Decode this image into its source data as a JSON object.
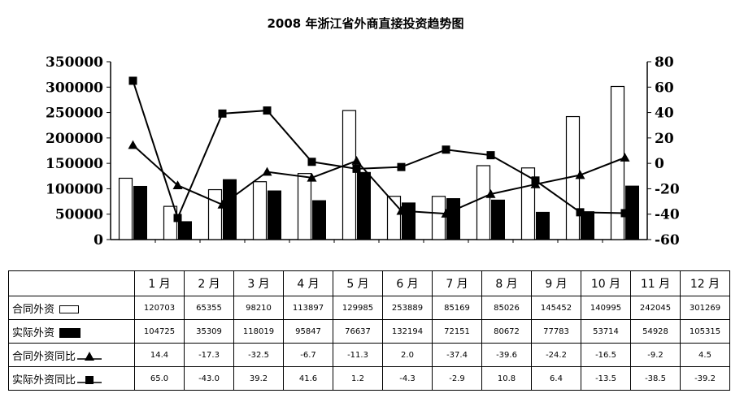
{
  "chart_data": {
    "type": "bar",
    "title": "2008 年浙江省外商直接投资趋势图",
    "categories": [
      "1 月",
      "2 月",
      "3 月",
      "4 月",
      "5 月",
      "6 月",
      "7 月",
      "8 月",
      "9 月",
      "10 月",
      "11 月",
      "12 月"
    ],
    "series": [
      {
        "name": "合同外资",
        "type": "bar",
        "style": "open",
        "axis": "left",
        "values": [
          120703,
          65355,
          98210,
          113897,
          129985,
          253889,
          85169,
          85026,
          145452,
          140995,
          242045,
          301269
        ]
      },
      {
        "name": "实际外资",
        "type": "bar",
        "style": "filled",
        "axis": "left",
        "values": [
          104725,
          35309,
          118019,
          95847,
          76637,
          132194,
          72151,
          80672,
          77783,
          53714,
          54928,
          105315
        ]
      },
      {
        "name": "合同外资同比",
        "type": "line",
        "marker": "triangle",
        "axis": "right",
        "values": [
          14.4,
          -17.3,
          -32.5,
          -6.7,
          -11.3,
          2.0,
          -37.4,
          -39.6,
          -24.2,
          -16.5,
          -9.2,
          4.5
        ]
      },
      {
        "name": "实际外资同比",
        "type": "line",
        "marker": "square",
        "axis": "right",
        "values": [
          65.0,
          -43.0,
          39.2,
          41.6,
          1.2,
          -4.3,
          -2.9,
          10.8,
          6.4,
          -13.5,
          -38.5,
          -39.2
        ]
      }
    ],
    "y_left": {
      "min": 0,
      "max": 350000,
      "ticks": [
        "0",
        "50000",
        "100000",
        "150000",
        "200000",
        "250000",
        "300000",
        "350000"
      ]
    },
    "y_right": {
      "min": -60,
      "max": 80,
      "ticks": [
        "-60",
        "-40",
        "-20",
        "0",
        "20",
        "40",
        "60",
        "80"
      ]
    },
    "grid": false,
    "legend": "data table below chart",
    "table_rows": [
      {
        "label": "合同外资",
        "symbol": "open-bar",
        "cells": [
          "120703",
          "65355",
          "98210",
          "113897",
          "129985",
          "253889",
          "85169",
          "85026",
          "145452",
          "140995",
          "242045",
          "301269"
        ]
      },
      {
        "label": "实际外资",
        "symbol": "filled-bar",
        "cells": [
          "104725",
          "35309",
          "118019",
          "95847",
          "76637",
          "132194",
          "72151",
          "80672",
          "77783",
          "53714",
          "54928",
          "105315"
        ]
      },
      {
        "label": "合同外资同比",
        "symbol": "triangle-line",
        "cells": [
          "14.4",
          "-17.3",
          "-32.5",
          "-6.7",
          "-11.3",
          "2.0",
          "-37.4",
          "-39.6",
          "-24.2",
          "-16.5",
          "-9.2",
          "4.5"
        ]
      },
      {
        "label": "实际外资同比",
        "symbol": "square-line",
        "cells": [
          "65.0",
          "-43.0",
          "39.2",
          "41.6",
          "1.2",
          "-4.3",
          "-2.9",
          "10.8",
          "6.4",
          "-13.5",
          "-38.5",
          "-39.2"
        ]
      }
    ]
  }
}
